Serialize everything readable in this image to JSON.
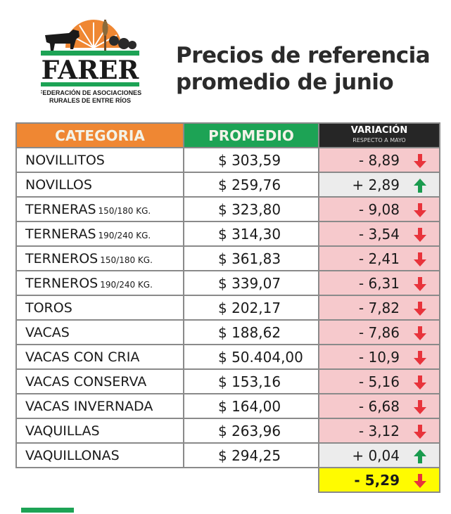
{
  "logo": {
    "name": "FARER",
    "line1": "FEDERACIÓN DE ASOCIACIONES",
    "line2": "RURALES DE ENTRE RÍOS"
  },
  "title": {
    "line1": "Precios de referencia",
    "line2": "promedio de junio"
  },
  "table": {
    "headers": {
      "categoria": "CATEGORIA",
      "promedio": "PROMEDIO",
      "variacion": "VARIACIÓN",
      "variacion_sub": "RESPECTO A  MAYO"
    },
    "rows": [
      {
        "categoria": "NOVILLITOS",
        "sub": "",
        "promedio": "$ 303,59",
        "variacion": "- 8,89",
        "trend": "down"
      },
      {
        "categoria": "NOVILLOS",
        "sub": "",
        "promedio": "$ 259,76",
        "variacion": "+ 2,89",
        "trend": "up"
      },
      {
        "categoria": "TERNERAS",
        "sub": "150/180 KG.",
        "promedio": "$ 323,80",
        "variacion": "- 9,08",
        "trend": "down"
      },
      {
        "categoria": "TERNERAS",
        "sub": "190/240 KG.",
        "promedio": "$ 314,30",
        "variacion": "- 3,54",
        "trend": "down"
      },
      {
        "categoria": "TERNEROS",
        "sub": "150/180 KG.",
        "promedio": "$ 361,83",
        "variacion": "- 2,41",
        "trend": "down"
      },
      {
        "categoria": "TERNEROS",
        "sub": "190/240 KG.",
        "promedio": "$ 339,07",
        "variacion": "- 6,31",
        "trend": "down"
      },
      {
        "categoria": "TOROS",
        "sub": "",
        "promedio": "$ 202,17",
        "variacion": "- 7,82",
        "trend": "down"
      },
      {
        "categoria": "VACAS",
        "sub": "",
        "promedio": "$ 188,62",
        "variacion": "- 7,86",
        "trend": "down"
      },
      {
        "categoria": "VACAS CON CRIA",
        "sub": "",
        "promedio": "$ 50.404,00",
        "variacion": "- 10,9",
        "trend": "down"
      },
      {
        "categoria": "VACAS CONSERVA",
        "sub": "",
        "promedio": "$ 153,16",
        "variacion": "- 5,16",
        "trend": "down"
      },
      {
        "categoria": "VACAS INVERNADA",
        "sub": "",
        "promedio": "$ 164,00",
        "variacion": "- 6,68",
        "trend": "down"
      },
      {
        "categoria": "VAQUILLAS",
        "sub": "",
        "promedio": "$ 263,96",
        "variacion": "- 3,12",
        "trend": "down"
      },
      {
        "categoria": "VAQUILLONAS",
        "sub": "",
        "promedio": "$ 294,25",
        "variacion": "+ 0,04",
        "trend": "up"
      }
    ],
    "total": {
      "variacion": "- 5,29",
      "trend": "down"
    }
  },
  "colors": {
    "orange": "#ef8733",
    "green": "#1da355",
    "dark": "#262626",
    "down_bg": "#f6c9cc",
    "up_bg": "#ececec",
    "total_bg": "#fffb00",
    "arrow_down": "#e8333b",
    "arrow_up": "#1a9b4e"
  }
}
